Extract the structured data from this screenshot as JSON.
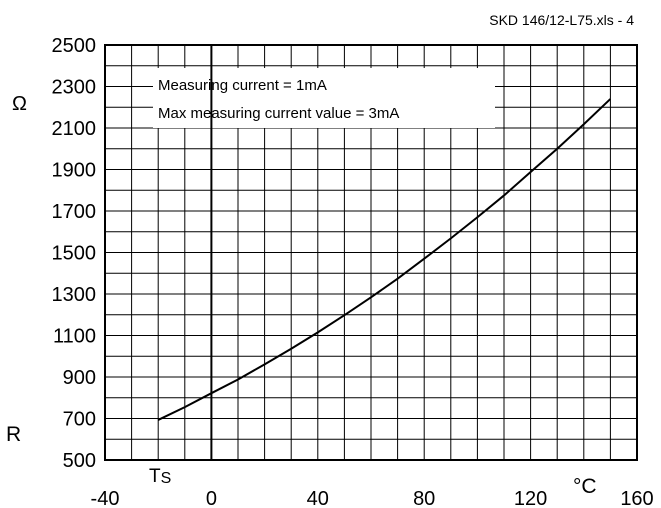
{
  "header": {
    "file_ref": "SKD 146/12-L75.xls - 4"
  },
  "chart_data": {
    "type": "line",
    "title": "",
    "xlabel": "°C",
    "ylabel_top": "Ω",
    "ylabel_bottom": "R",
    "x_start_marker": "TS",
    "xlim": [
      -40,
      160
    ],
    "ylim": [
      500,
      2500
    ],
    "x_ticks": [
      "-40",
      "0",
      "40",
      "80",
      "120",
      "160"
    ],
    "y_ticks": [
      "500",
      "700",
      "900",
      "1100",
      "1300",
      "1500",
      "1700",
      "1900",
      "2100",
      "2300",
      "2500"
    ],
    "x_gridlines": [
      -40,
      -30,
      -20,
      -10,
      0,
      10,
      20,
      30,
      40,
      50,
      60,
      70,
      80,
      90,
      100,
      110,
      120,
      130,
      140,
      150,
      160
    ],
    "y_gridlines": [
      500,
      600,
      700,
      800,
      900,
      1000,
      1100,
      1200,
      1300,
      1400,
      1500,
      1600,
      1700,
      1800,
      1900,
      2000,
      2100,
      2200,
      2300,
      2400,
      2500
    ],
    "axis_line_x": 0,
    "annotations": [
      "Measuring current = 1mA",
      "Max measuring current value = 3mA"
    ],
    "series": [
      {
        "x": [
          -20,
          -10,
          0,
          10,
          20,
          30,
          40,
          50,
          60,
          70,
          80,
          90,
          100,
          110,
          120,
          130,
          140,
          150
        ],
        "values": [
          693,
          755,
          822,
          888,
          961,
          1036,
          1115,
          1198,
          1284,
          1374,
          1470,
          1568,
          1670,
          1775,
          1888,
          2000,
          2118,
          2240
        ]
      }
    ],
    "grid": true,
    "legend": "none"
  }
}
